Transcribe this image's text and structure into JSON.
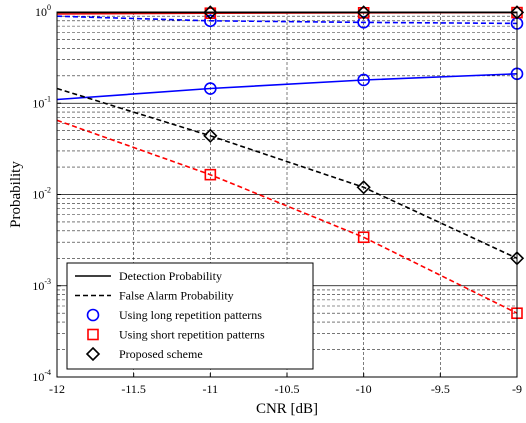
{
  "chart_data": {
    "type": "line",
    "xlabel": "CNR [dB]",
    "ylabel": "Probability",
    "xlim": [
      -12,
      -9
    ],
    "ylim": [
      0.0001,
      1
    ],
    "yscale": "log",
    "grid": "major-solid, minor-dashed",
    "legend_position": "bottom-left",
    "x_ticks": [
      "-12",
      "-11.5",
      "-11",
      "-10.5",
      "-10",
      "-9.5",
      "-9"
    ],
    "y_ticks": [
      {
        "base": "10",
        "exp": "-4",
        "value": 0.0001
      },
      {
        "base": "10",
        "exp": "-3",
        "value": 0.001
      },
      {
        "base": "10",
        "exp": "-2",
        "value": 0.01
      },
      {
        "base": "10",
        "exp": "-1",
        "value": 0.1
      },
      {
        "base": "10",
        "exp": "0",
        "value": 1
      }
    ],
    "series": [
      {
        "color": "#0000ff",
        "dash": "solid",
        "marker": "circle",
        "x": [
          -12,
          -11,
          -10,
          -9
        ],
        "y": [
          0.11,
          0.145,
          0.18,
          0.21
        ]
      },
      {
        "color": "#0000ff",
        "dash": "dashed",
        "marker": "circle",
        "x": [
          -12,
          -11,
          -10,
          -9
        ],
        "y": [
          0.9,
          0.8,
          0.77,
          0.75
        ]
      },
      {
        "color": "#ff0000",
        "dash": "solid",
        "marker": "square",
        "x": [
          -12,
          -11,
          -10,
          -9
        ],
        "y": [
          0.95,
          0.97,
          0.98,
          0.985
        ]
      },
      {
        "color": "#ff0000",
        "dash": "dashed",
        "marker": "square",
        "x": [
          -12,
          -11,
          -10,
          -9
        ],
        "y": [
          0.065,
          0.0165,
          0.0034,
          0.0005
        ]
      },
      {
        "color": "#000000",
        "dash": "solid",
        "marker": "diamond",
        "x": [
          -12,
          -11,
          -10,
          -9
        ],
        "y": [
          0.99,
          0.99,
          0.99,
          0.99
        ]
      },
      {
        "color": "#000000",
        "dash": "dashed",
        "marker": "diamond",
        "x": [
          -12,
          -11,
          -10,
          -9
        ],
        "y": [
          0.145,
          0.044,
          0.012,
          0.002
        ]
      }
    ],
    "legend": [
      {
        "label": "Detection Probability",
        "symbol": "solid-line",
        "color": "#000000"
      },
      {
        "label": "False Alarm Probability",
        "symbol": "dashed-line",
        "color": "#000000"
      },
      {
        "label": "Using long repetition patterns",
        "symbol": "circle",
        "color": "#0000ff"
      },
      {
        "label": "Using short repetition patterns",
        "symbol": "square",
        "color": "#ff0000"
      },
      {
        "label": "Proposed scheme",
        "symbol": "diamond",
        "color": "#000000"
      }
    ]
  }
}
